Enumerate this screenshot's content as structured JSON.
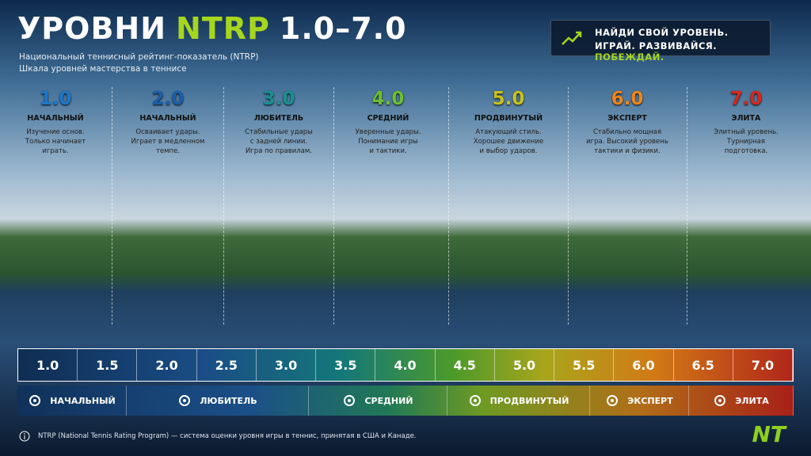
{
  "header": {
    "title": [
      "УРОВНИ",
      "NTRP",
      "1.0–7.0"
    ],
    "subtitle": [
      "Национальный теннисный рейтинг-показатель (NTRP)",
      "Шкала уровней мастерства в теннисе"
    ]
  },
  "cta": {
    "line1": "НАЙДИ СВОЙ УРОВЕНЬ.",
    "line2": [
      "ИГРАЙ. РАЗВИВАЙСЯ.",
      "ПОБЕЖДАЙ."
    ]
  },
  "levels": [
    {
      "level": "1.0",
      "name": "НАЧАЛЬНЫЙ",
      "description": [
        "Изучение основ.",
        "Только начинает",
        "играть."
      ]
    },
    {
      "level": "2.0",
      "name": "НАЧАЛЬНЫЙ",
      "description": [
        "Осваивает удары.",
        "Играет в медленном",
        "темпе."
      ]
    },
    {
      "level": "3.0",
      "name": "ЛЮБИТЕЛЬ",
      "description": [
        "Стабильные удары",
        "с задней линии.",
        "Игра по правилам."
      ]
    },
    {
      "level": "4.0",
      "name": "СРЕДНИЙ",
      "description": [
        "Уверенные удары.",
        "Понимание игры",
        "и тактики."
      ]
    },
    {
      "level": "5.0",
      "name": "ПРОДВИНУТЫЙ",
      "description": [
        "Атакующий стиль.",
        "Хорошее движение",
        "и выбор ударов."
      ]
    },
    {
      "level": "6.0",
      "name": "ЭКСПЕРТ",
      "description": [
        "Стабильно мощная",
        "игра. Высокий уровень",
        "тактики и физики."
      ]
    },
    {
      "level": "7.0",
      "name": "ЭЛИТА",
      "description": [
        "Элитный уровень.",
        "Турнирная",
        "подготовка."
      ]
    }
  ],
  "scale": [
    "1.0",
    "1.5",
    "2.0",
    "2.5",
    "3.0",
    "3.5",
    "4.0",
    "4.5",
    "5.0",
    "5.5",
    "6.0",
    "6.5",
    "7.0"
  ],
  "categories": [
    "НАЧАЛЬНЫЙ",
    "ЛЮБИТЕЛЬ",
    "СРЕДНИЙ",
    "ПРОДВИНУТЫЙ",
    "ЭКСПЕРТ",
    "ЭЛИТА"
  ],
  "footnote": "NTRP (National Tennis Rating Program) — система оценки уровня игры в теннис, принятая в США и Канаде.",
  "logo": "NT"
}
